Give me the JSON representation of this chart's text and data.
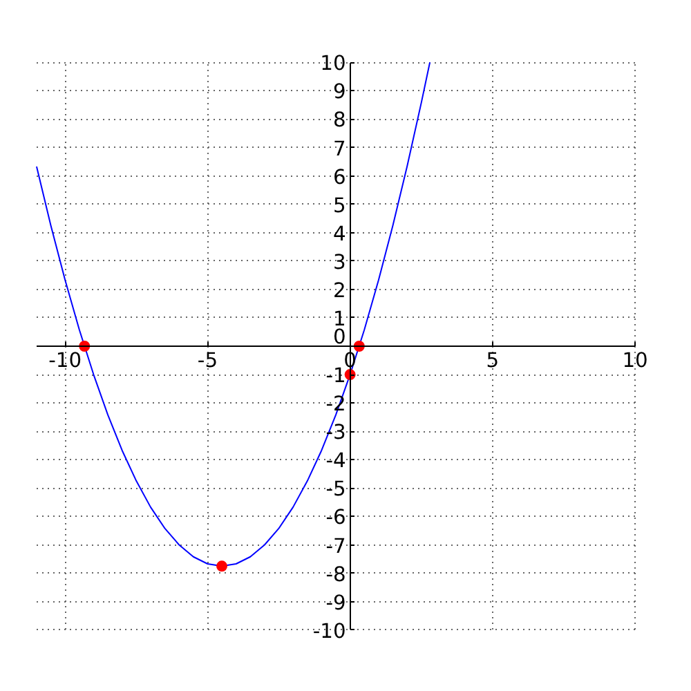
{
  "chart_data": {
    "type": "line",
    "xlim": [
      -11,
      10
    ],
    "ylim": [
      -10,
      10
    ],
    "xticks": [
      -10,
      -5,
      0,
      5,
      10
    ],
    "yticks": [
      -10,
      -9,
      -8,
      -7,
      -6,
      -5,
      -4,
      -3,
      -2,
      -1,
      0,
      1,
      2,
      3,
      4,
      5,
      6,
      7,
      8,
      9,
      10
    ],
    "grid": true,
    "series": [
      {
        "type": "line",
        "color": "#0000ff",
        "x": [
          -11,
          -10.5,
          -10,
          -9.5,
          -9,
          -8.5,
          -8,
          -7.5,
          -7,
          -6.5,
          -6,
          -5.5,
          -5,
          -4.5,
          -4,
          -3.5,
          -3,
          -2.5,
          -2,
          -1.5,
          -1,
          -0.5,
          0,
          0.5,
          1,
          1.5,
          2,
          2.5,
          2.8
        ],
        "values": [
          6.33,
          4.25,
          2.33,
          0.58,
          -1,
          -2.42,
          -3.67,
          -4.75,
          -5.67,
          -6.42,
          -7,
          -7.42,
          -7.67,
          -7.75,
          -7.67,
          -7.42,
          -7,
          -6.42,
          -5.67,
          -4.75,
          -3.67,
          -2.42,
          -1,
          0.58,
          2.33,
          4.25,
          6.33,
          8.58,
          10
        ]
      },
      {
        "type": "scatter",
        "color": "#ff0000",
        "x": [
          -9.32,
          0.32,
          0,
          -4.5
        ],
        "values": [
          0,
          0,
          -1,
          -7.75
        ]
      }
    ]
  }
}
